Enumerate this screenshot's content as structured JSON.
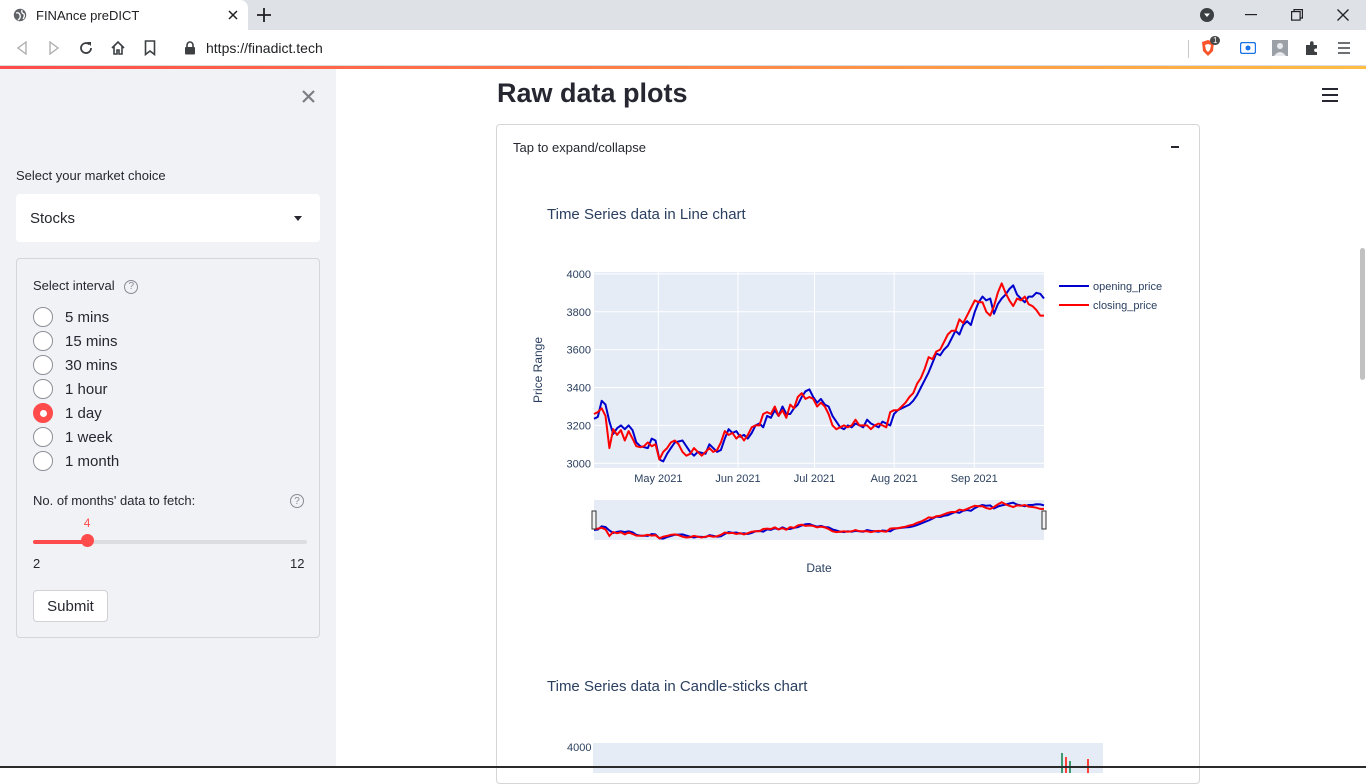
{
  "browser": {
    "tab_title": "FINAnce preDICT",
    "url": "https://finadict.tech",
    "extension_badge": "1"
  },
  "sidebar": {
    "market_label": "Select your market choice",
    "market_value": "Stocks",
    "interval_label": "Select interval",
    "interval_help": "?",
    "intervals": [
      "5 mins",
      "15 mins",
      "30 mins",
      "1 hour",
      "1 day",
      "1 week",
      "1 month"
    ],
    "selected_interval": "1 day",
    "months_label": "No. of months' data to fetch:",
    "months_help": "?",
    "months_value": "4",
    "months_min": "2",
    "months_max": "12",
    "months_fraction": 0.2,
    "submit_label": "Submit"
  },
  "main": {
    "page_title": "Raw data plots",
    "expander_label": "Tap to expand/collapse",
    "line_chart_title": "Time Series data in Line chart",
    "candle_chart_title": "Time Series data in Candle-sticks chart",
    "candle_first_tick": "4000"
  },
  "chart_data": {
    "type": "line",
    "title": "Time Series data in Line chart",
    "xlabel": "Date",
    "ylabel": "Price Range",
    "ylim": [
      2975,
      4010
    ],
    "x_tick_labels": [
      "May 2021",
      "Jun 2021",
      "Jul 2021",
      "Aug 2021",
      "Sep 2021"
    ],
    "y_tick_labels": [
      "3000",
      "3200",
      "3400",
      "3600",
      "3800",
      "4000"
    ],
    "y_ticks": [
      3000,
      3200,
      3400,
      3600,
      3800,
      4000
    ],
    "legend_position": "top-right",
    "series": [
      {
        "name": "opening_price",
        "color": "#0000cc",
        "values": [
          3235,
          3245,
          3330,
          3310,
          3220,
          3155,
          3185,
          3200,
          3180,
          3200,
          3175,
          3110,
          3090,
          3085,
          3080,
          3130,
          3120,
          3020,
          3010,
          3050,
          3080,
          3110,
          3115,
          3120,
          3090,
          3060,
          3040,
          3060,
          3055,
          3050,
          3100,
          3080,
          3060,
          3070,
          3130,
          3180,
          3160,
          3170,
          3140,
          3150,
          3130,
          3160,
          3200,
          3210,
          3190,
          3250,
          3240,
          3280,
          3250,
          3300,
          3260,
          3260,
          3290,
          3310,
          3350,
          3380,
          3390,
          3350,
          3320,
          3340,
          3310,
          3300,
          3250,
          3220,
          3190,
          3180,
          3200,
          3190,
          3210,
          3200,
          3190,
          3230,
          3210,
          3200,
          3190,
          3220,
          3210,
          3200,
          3260,
          3280,
          3290,
          3300,
          3310,
          3330,
          3360,
          3400,
          3440,
          3480,
          3530,
          3580,
          3570,
          3600,
          3620,
          3660,
          3700,
          3680,
          3730,
          3750,
          3730,
          3800,
          3850,
          3880,
          3860,
          3870,
          3790,
          3840,
          3870,
          3890,
          3920,
          3940,
          3890,
          3870,
          3850,
          3880,
          3880,
          3900,
          3895,
          3870
        ]
      },
      {
        "name": "closing_price",
        "color": "#ff0000",
        "values": [
          3260,
          3270,
          3290,
          3250,
          3080,
          3180,
          3150,
          3175,
          3120,
          3170,
          3130,
          3090,
          3085,
          3090,
          3110,
          3090,
          3100,
          3020,
          3060,
          3080,
          3110,
          3120,
          3100,
          3060,
          3040,
          3050,
          3080,
          3060,
          3040,
          3060,
          3080,
          3060,
          3070,
          3110,
          3170,
          3150,
          3160,
          3130,
          3150,
          3120,
          3150,
          3190,
          3200,
          3200,
          3260,
          3270,
          3260,
          3300,
          3250,
          3280,
          3240,
          3310,
          3290,
          3350,
          3370,
          3340,
          3350,
          3340,
          3300,
          3320,
          3300,
          3260,
          3200,
          3180,
          3190,
          3200,
          3190,
          3200,
          3230,
          3200,
          3200,
          3200,
          3180,
          3200,
          3210,
          3200,
          3190,
          3270,
          3280,
          3280,
          3300,
          3320,
          3350,
          3370,
          3420,
          3450,
          3500,
          3560,
          3550,
          3590,
          3600,
          3640,
          3680,
          3700,
          3700,
          3760,
          3740,
          3780,
          3820,
          3860,
          3850,
          3850,
          3800,
          3780,
          3830,
          3900,
          3950,
          3900,
          3860,
          3830,
          3870,
          3860,
          3880,
          3840,
          3830,
          3810,
          3780,
          3780
        ]
      }
    ]
  }
}
